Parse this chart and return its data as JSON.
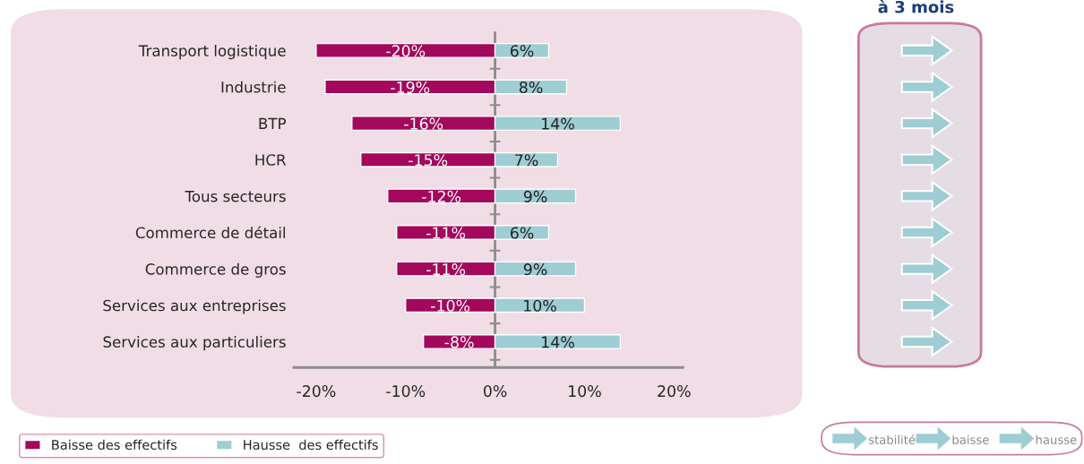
{
  "chart_data": {
    "type": "bar",
    "orientation": "horizontal",
    "stacked": true,
    "categories": [
      "Transport logistique",
      "Industrie",
      "BTP",
      "HCR",
      "Tous secteurs",
      "Commerce de détail",
      "Commerce de gros",
      "Services aux entreprises",
      "Services aux particuliers"
    ],
    "series": [
      {
        "name": "Baisse des effectifs",
        "color": "#a3085c",
        "values": [
          -20,
          -19,
          -16,
          -15,
          -12,
          -11,
          -11,
          -10,
          -8
        ],
        "value_labels": [
          "-20%",
          "-19%",
          "-16%",
          "-15%",
          "-12%",
          "-11%",
          "-11%",
          "-10%",
          "-8%"
        ]
      },
      {
        "name": "Hausse  des effectifs",
        "color": "#9ecdd3",
        "values": [
          6,
          8,
          14,
          7,
          9,
          6,
          9,
          10,
          14
        ],
        "value_labels": [
          "6%",
          "8%",
          "14%",
          "7%",
          "9%",
          "6%",
          "9%",
          "10%",
          "14%"
        ]
      }
    ],
    "xlim": [
      -22.5,
      21
    ],
    "xticks": [
      {
        "value": -20,
        "label": "-20%"
      },
      {
        "value": -10,
        "label": "-10%"
      },
      {
        "value": 0,
        "label": "0%"
      },
      {
        "value": 10,
        "label": "10%"
      },
      {
        "value": 20,
        "label": "20%"
      }
    ],
    "ref_lines": [
      {
        "axis": "x",
        "value": 0,
        "color": "#8c8c8c"
      }
    ],
    "legend": "bottom left",
    "annotations": [
      "à 3 mois",
      "stabilité",
      "baisse",
      "hausse"
    ]
  }
}
